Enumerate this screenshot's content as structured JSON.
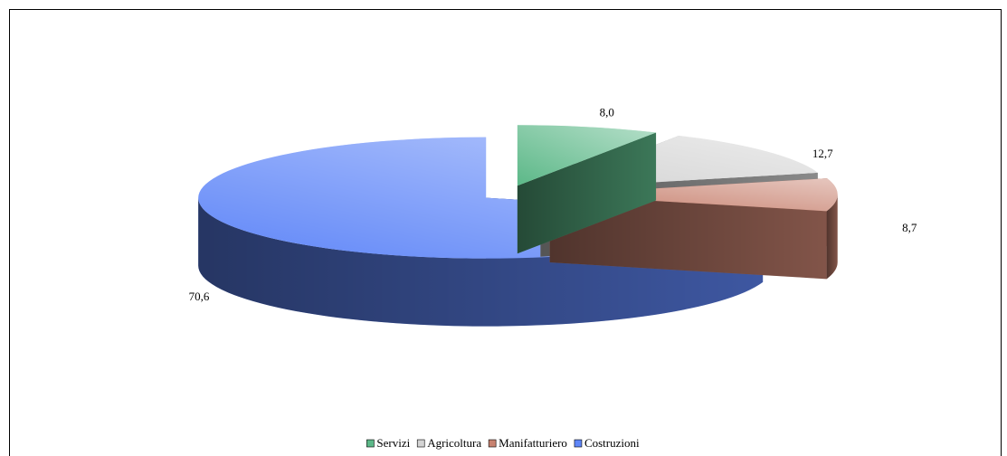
{
  "chart_data": {
    "type": "pie3d",
    "categories": [
      "Servizi",
      "Agricoltura",
      "Manifatturiero",
      "Costruzioni"
    ],
    "values": [
      8.0,
      12.7,
      8.7,
      70.6
    ],
    "value_labels": [
      "8,0",
      "12,7",
      "8,7",
      "70,6"
    ],
    "colors": [
      "#5cb888",
      "#d4d4d4",
      "#c88270",
      "#5f86f8"
    ],
    "legend": "bottom"
  }
}
